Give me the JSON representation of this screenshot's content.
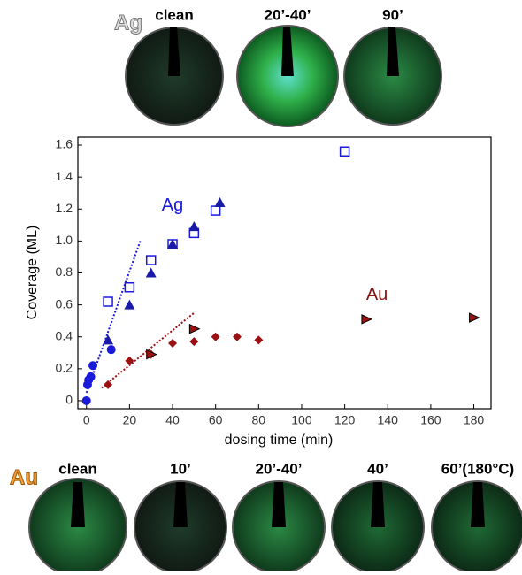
{
  "top_panel": {
    "label": "Ag",
    "images": [
      "clean",
      "20’-40’",
      "90’"
    ]
  },
  "bottom_panel": {
    "label": "Au",
    "images": [
      "clean",
      "10’",
      "20’-40’",
      "40’",
      "60’(180°C)"
    ]
  },
  "chart_data": {
    "type": "scatter",
    "x_label": "dosing time (min)",
    "y_label": "Coverage (ML)",
    "xlim": [
      -4,
      188
    ],
    "ylim": [
      -0.05,
      1.65
    ],
    "xticks": [
      0,
      20,
      40,
      60,
      80,
      100,
      120,
      140,
      160,
      180
    ],
    "yticks": [
      0,
      0.2,
      0.4,
      0.6,
      0.8,
      {
        "value": 1,
        "label": "1.0"
      },
      1.2,
      1.4,
      1.6
    ],
    "series": [
      {
        "marker": "square-open",
        "color": "#1a1adb",
        "x": [
          10,
          20,
          30,
          40,
          50,
          60,
          120
        ],
        "values": [
          0.62,
          0.71,
          0.88,
          0.98,
          1.05,
          1.19,
          1.56
        ]
      },
      {
        "marker": "triangle-up",
        "color": "#1a1aa8",
        "x": [
          10,
          20,
          30,
          40,
          50,
          62
        ],
        "values": [
          0.38,
          0.6,
          0.8,
          0.98,
          1.09,
          1.24
        ]
      },
      {
        "marker": "circle",
        "color": "#1a1adb",
        "x": [
          0,
          0.5,
          1,
          2,
          3,
          11.5
        ],
        "values": [
          0,
          0.1,
          0.13,
          0.15,
          0.22,
          0.32
        ]
      },
      {
        "marker": "diamond",
        "color": "#9b1010",
        "x": [
          10,
          20,
          30,
          40,
          50,
          60,
          70,
          80
        ],
        "values": [
          0.1,
          0.25,
          0.29,
          0.36,
          0.37,
          0.4,
          0.4,
          0.38
        ]
      },
      {
        "marker": "triangle-right",
        "color": "#9b1010",
        "x": [
          30,
          50,
          130,
          180
        ],
        "values": [
          0.29,
          0.45,
          0.51,
          0.52
        ]
      }
    ],
    "fits": [
      {
        "color": "#1a1adb",
        "x": [
          0,
          25
        ],
        "values": [
          0.05,
          1.0
        ]
      },
      {
        "color": "#9b1010",
        "x": [
          7,
          50
        ],
        "values": [
          0.08,
          0.55
        ]
      }
    ],
    "annotations": [
      {
        "text": "Ag",
        "x": 40,
        "y": 1.22,
        "color": "#1a1adb"
      },
      {
        "text": "Au",
        "x": 135,
        "y": 0.66,
        "color": "#8b0f0f"
      }
    ]
  }
}
